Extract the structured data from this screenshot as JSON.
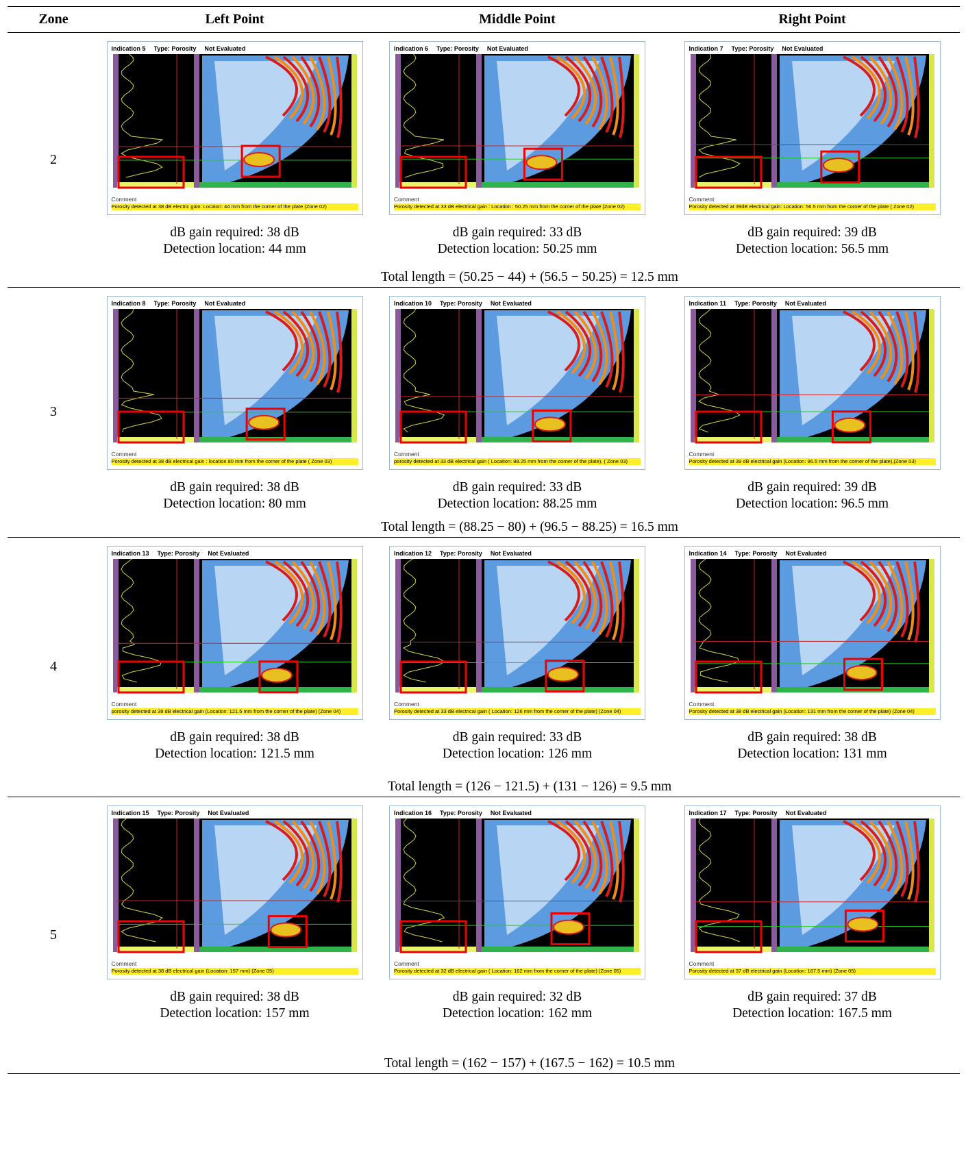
{
  "table": {
    "header": [
      "Zone",
      "Left Point",
      "Middle Point",
      "Right Point"
    ],
    "rows": [
      {
        "zone": "2",
        "cells": [
          {
            "indication": "Indication 5",
            "type": "Type: Porosity",
            "status": "Not Evaluated",
            "comment_label": "Comment",
            "comment": "Porosity detected at 38 dB electric gain: Locaion: 44 mm from the corner of the plate (Zone 02)",
            "gain": "dB gain required: 38 dB",
            "location": "Detection location: 44 mm"
          },
          {
            "indication": "Indication 6",
            "type": "Type: Porosity",
            "status": "Not Evaluated",
            "comment_label": "Comment",
            "comment": "Porosity detected at 33 dB electrical gain : Location : 50.25 mm from the corner of the plate (Zone 02)",
            "gain": "dB gain required: 33 dB",
            "location": "Detection location: 50.25 mm"
          },
          {
            "indication": "Indication 7",
            "type": "Type: Porosity",
            "status": "Not Evaluated",
            "comment_label": "Comment",
            "comment": "Porosity detected at 39dB electrical gain: Location: 56.5 mm from the corner of the plate ( Zone 02)",
            "gain": "dB gain required: 39 dB",
            "location": "Detection location: 56.5 mm"
          }
        ],
        "total": "Total length = (50.25 − 44) + (56.5 − 50.25) = 12.5 mm"
      },
      {
        "zone": "3",
        "cells": [
          {
            "indication": "Indication 8",
            "type": "Type: Porosity",
            "status": "Not Evaluated",
            "comment_label": "Comment",
            "comment": "Porosity detected at 38 dB electrical gain : location 80 mm from the corner of the plate ( Zone 03)",
            "gain": "dB gain required: 38 dB",
            "location": "Detection location: 80 mm"
          },
          {
            "indication": "Indication 10",
            "type": "Type: Porosity",
            "status": "Not Evaluated",
            "comment_label": "Comment",
            "comment": "porosity detected at 33 dB electrical gain ( Location: 88.25 mm from the corner of the plate), ( Zone 03)",
            "gain": "dB gain required: 33 dB",
            "location": "Detection location: 88.25 mm"
          },
          {
            "indication": "Indication 11",
            "type": "Type: Porosity",
            "status": "Not Evaluated",
            "comment_label": "Comment",
            "comment": "Porosity detected at 39 dB electrical gain (Location: 96.5 mm from the corner of the plate),(Zone 03)",
            "gain": "dB gain required: 39 dB",
            "location": "Detection location: 96.5 mm"
          }
        ],
        "total": "Total length = (88.25 − 80) + (96.5 − 88.25) = 16.5 mm"
      },
      {
        "zone": "4",
        "cells": [
          {
            "indication": "Indication 13",
            "type": "Type: Porosity",
            "status": "Not Evaluated",
            "comment_label": "Comment",
            "comment": "porosity detected at 38 dB electrical gain (Location: 121.5 mm from the corner of the plate) (Zone 04)",
            "gain": "dB gain required: 38 dB",
            "location": "Detection location: 121.5 mm"
          },
          {
            "indication": "Indication 12",
            "type": "Type: Porosity",
            "status": "Not Evaluated",
            "comment_label": "Comment",
            "comment": "Porosity detected at 33 dB electrical gain ( Location: 126 mm from the corner of the plate) (Zone 04)",
            "gain": "dB gain required: 33 dB",
            "location": "Detection location: 126 mm"
          },
          {
            "indication": "Indication 14",
            "type": "Type: Porosity",
            "status": "Not Evaluated",
            "comment_label": "Comment",
            "comment": "Porosity detected at 38 dB electrical gain (Location: 131 mm from the corner of the plate) (Zone 04)",
            "gain": "dB gain required: 38 dB",
            "location": "Detection location: 131 mm"
          }
        ],
        "total": "Total length = (126 − 121.5) + (131 − 126) = 9.5 mm"
      },
      {
        "zone": "5",
        "cells": [
          {
            "indication": "Indication 15",
            "type": "Type: Porosity",
            "status": "Not Evaluated",
            "comment_label": "Comment",
            "comment": "Porosity detected at 38 dB electrical gain (Location: 157 mm) (Zone 05)",
            "gain": "dB gain required: 38 dB",
            "location": "Detection location: 157 mm"
          },
          {
            "indication": "Indication 16",
            "type": "Type: Porosity",
            "status": "Not Evaluated",
            "comment_label": "Comment",
            "comment": "Porosity detected at 32 dB electrical gain ( Location: 162 mm from the corner of the plate) (Zone 05)",
            "gain": "dB gain required: 32 dB",
            "location": "Detection location: 162 mm"
          },
          {
            "indication": "Indication 17",
            "type": "Type: Porosity",
            "status": "Not Evaluated",
            "comment_label": "Comment",
            "comment": "Porosity detected at 37 dB electrical gain (Location: 167.5 mm) (Zone 05)",
            "gain": "dB gain required: 37 dB",
            "location": "Detection location: 167.5 mm"
          }
        ],
        "total": "Total length = (162 − 157) + (167.5 − 162) = 10.5 mm"
      }
    ]
  }
}
